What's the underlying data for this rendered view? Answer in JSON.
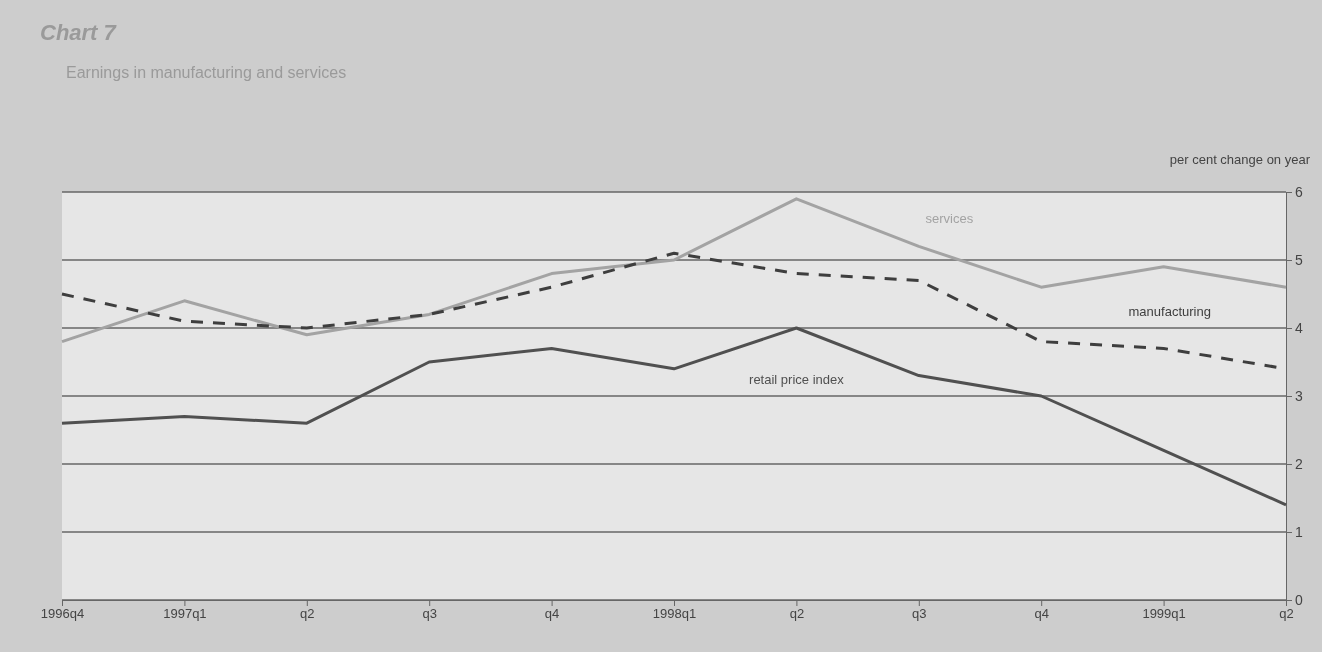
{
  "chart_data": {
    "type": "line",
    "title": "Chart 7",
    "subtitle": "Earnings in manufacturing and services",
    "ylabel": "per cent change on year",
    "categories": [
      "1996q4",
      "1997q1",
      "q2",
      "q3",
      "q4",
      "1998q1",
      "q2",
      "q3",
      "q4",
      "1999q1",
      "q2"
    ],
    "series": [
      {
        "name": "services",
        "color": "#a3a3a3",
        "line_style": "solid",
        "values": [
          3.8,
          4.4,
          3.9,
          4.2,
          4.8,
          5.0,
          5.9,
          5.2,
          4.6,
          4.9,
          4.6
        ]
      },
      {
        "name": "manufacturing",
        "color": "#3e3e3e",
        "line_style": "dashed",
        "values": [
          4.5,
          4.1,
          4.0,
          4.2,
          4.6,
          5.1,
          4.8,
          4.7,
          3.8,
          3.7,
          3.4
        ]
      },
      {
        "name": "retail price index",
        "color": "#505050",
        "line_style": "solid",
        "values": [
          2.6,
          2.7,
          2.6,
          3.5,
          3.7,
          3.4,
          4.0,
          3.3,
          3.0,
          2.2,
          1.4
        ]
      }
    ],
    "ylim": [
      0,
      6
    ],
    "yticks": [
      0,
      1,
      2,
      3,
      4,
      5,
      6
    ],
    "grid": "y",
    "legend": false
  }
}
